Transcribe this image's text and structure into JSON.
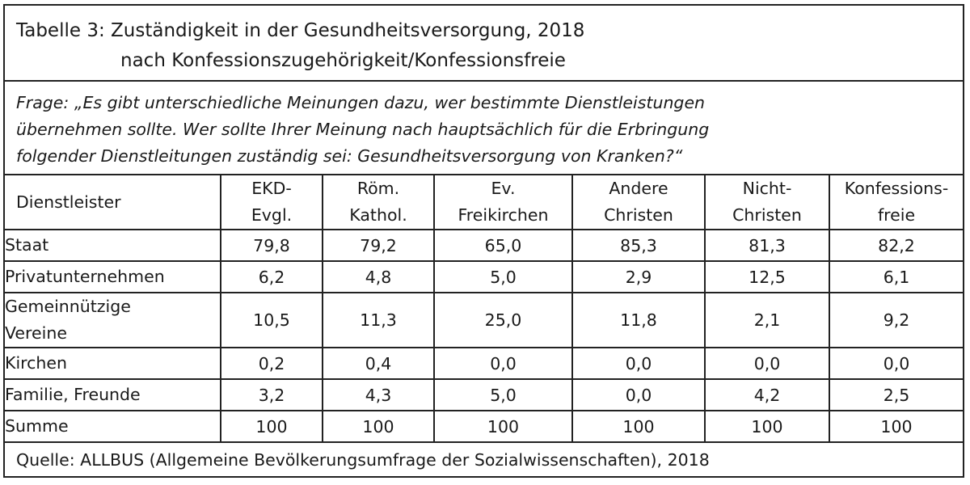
{
  "title": {
    "line1": "Tabelle 3: Zuständigkeit in der Gesundheitsversorgung, 2018",
    "line2": "nach Konfessionszugehörigkeit/Konfessionsfreie"
  },
  "question": {
    "line1": "Frage: „Es gibt unterschiedliche Meinungen dazu, wer bestimmte Dienstleistungen",
    "line2": "übernehmen sollte. Wer sollte Ihrer Meinung nach hauptsächlich für die Erbringung",
    "line3": "folgender Dienstleitungen zuständig sei: Gesundheitsversorgung von Kranken?“"
  },
  "table": {
    "header": {
      "dienstleister": "Dienstleister",
      "columns": [
        {
          "l1": "EKD-",
          "l2": "Evgl."
        },
        {
          "l1": "Röm.",
          "l2": "Kathol."
        },
        {
          "l1": "Ev.",
          "l2": "Freikirchen"
        },
        {
          "l1": "Andere",
          "l2": "Christen"
        },
        {
          "l1": "Nicht-",
          "l2": "Christen"
        },
        {
          "l1": "Konfessions-",
          "l2": "freie"
        }
      ]
    },
    "rows": [
      {
        "l1": "Staat",
        "l2": "",
        "values": [
          "79,8",
          "79,2",
          "65,0",
          "85,3",
          "81,3",
          "82,2"
        ]
      },
      {
        "l1": "Privatunternehmen",
        "l2": "",
        "values": [
          "6,2",
          "4,8",
          "5,0",
          "2,9",
          "12,5",
          "6,1"
        ]
      },
      {
        "l1": "Gemeinnützige",
        "l2": "Vereine",
        "values": [
          "10,5",
          "11,3",
          "25,0",
          "11,8",
          "2,1",
          "9,2"
        ]
      },
      {
        "l1": "Kirchen",
        "l2": "",
        "values": [
          "0,2",
          "0,4",
          "0,0",
          "0,0",
          "0,0",
          "0,0"
        ]
      },
      {
        "l1": "Familie, Freunde",
        "l2": "",
        "values": [
          "3,2",
          "4,3",
          "5,0",
          "0,0",
          "4,2",
          "2,5"
        ]
      },
      {
        "l1": "Summe",
        "l2": "",
        "values": [
          "100",
          "100",
          "100",
          "100",
          "100",
          "100"
        ]
      }
    ]
  },
  "source": "Quelle: ALLBUS (Allgemeine Bevölkerungsumfrage der Sozialwissenschaften), 2018"
}
